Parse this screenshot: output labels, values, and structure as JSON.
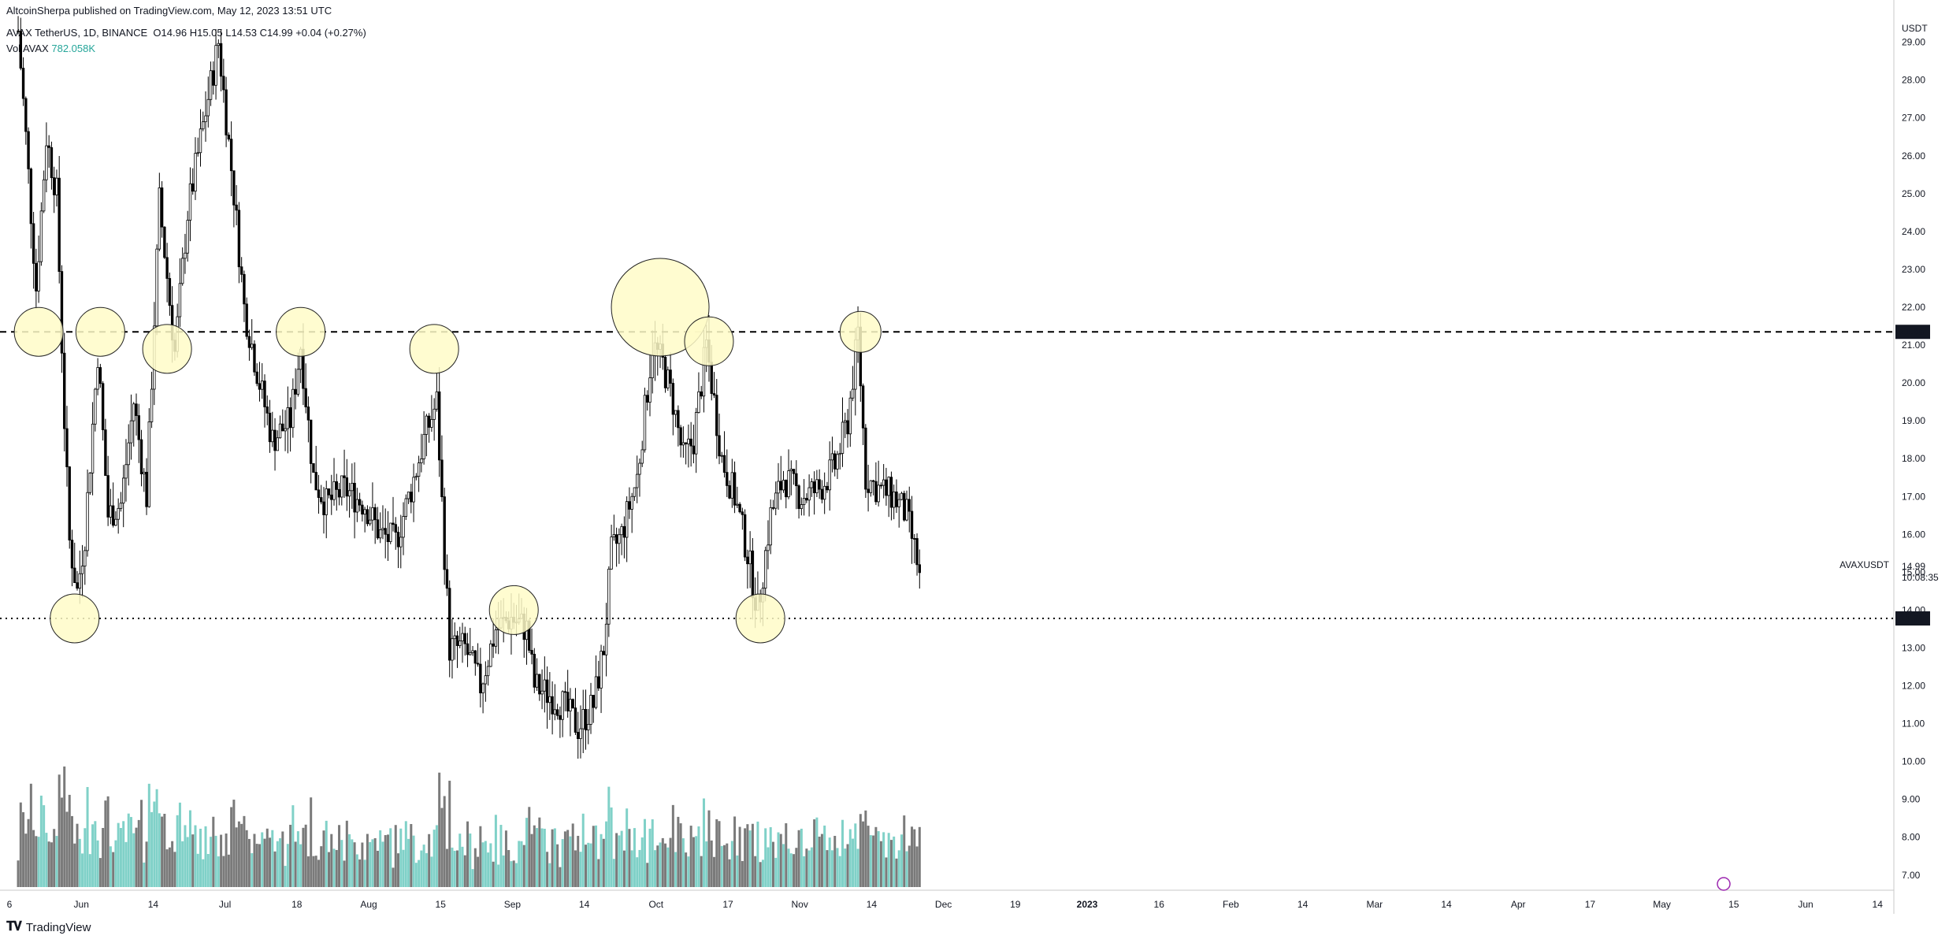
{
  "header": {
    "published": "AltcoinSherpa published on TradingView.com, May 12, 2023 13:51 UTC",
    "symbol_line": "AVAX TetherUS, 1D, BINANCE",
    "open": "O14.96",
    "high": "H15.05",
    "low": "L14.53",
    "close": "C14.99",
    "change": "+0.04 (+0.27%)",
    "volume_label": "Vol AVAX",
    "volume_value": "782.058K"
  },
  "footer": {
    "brand": "TradingView"
  },
  "colors": {
    "up_volume": "#80d1c8",
    "down_volume": "#7a7a7a",
    "circle_fill": "#fffbc8",
    "circle_stroke": "#222222",
    "label_bg": "#131722"
  },
  "chart_data": {
    "type": "candlestick",
    "symbol": "AVAXUSDT",
    "unit": "USDT",
    "current_price": "14.99",
    "countdown": "10:08:35",
    "y_axis_ticks": [
      "7.00",
      "8.00",
      "9.00",
      "10.00",
      "11.00",
      "12.00",
      "13.00",
      "14.00",
      "15.00",
      "16.00",
      "17.00",
      "18.00",
      "19.00",
      "20.00",
      "21.00",
      "22.00",
      "23.00",
      "24.00",
      "25.00",
      "26.00",
      "27.00",
      "28.00",
      "29.00"
    ],
    "ylim": [
      6.6,
      29.7
    ],
    "x_axis_ticks": [
      "6",
      "Jun",
      "14",
      "Jul",
      "18",
      "Aug",
      "15",
      "Sep",
      "14",
      "Oct",
      "17",
      "Nov",
      "14",
      "Dec",
      "19",
      "2023",
      "16",
      "Feb",
      "14",
      "Mar",
      "14",
      "Apr",
      "17",
      "May",
      "15",
      "Jun",
      "14"
    ],
    "horizontal_levels": [
      {
        "price": 21.35,
        "label": "21.35",
        "style": "dashed"
      },
      {
        "price": 13.78,
        "label": "13.78",
        "style": "dotted"
      }
    ],
    "highlighted_touches": [
      {
        "near": "early Jun 2022",
        "price": 21.35
      },
      {
        "near": "mid Jun 2022",
        "price": 13.78
      },
      {
        "near": "late Jun 2022",
        "price": 21.35
      },
      {
        "near": "late Jul 2022",
        "price": 20.9
      },
      {
        "near": "mid Sep 2022",
        "price": 21.35
      },
      {
        "near": "early Nov 2022",
        "price": 20.9
      },
      {
        "near": "early Dec 2022",
        "price": 13.9
      },
      {
        "near": "late Jan 2023",
        "price": 22.0
      },
      {
        "near": "mid Feb 2023",
        "price": 21.1
      },
      {
        "near": "early Mar 2023",
        "price": 13.78
      },
      {
        "near": "mid Apr 2023",
        "price": 21.35
      }
    ],
    "price_path": [
      [
        "May 26 2022",
        29.3
      ],
      [
        "May 29 2022",
        26.5
      ],
      [
        "Jun 2 2022",
        22.5
      ],
      [
        "Jun 6 2022",
        26.5
      ],
      [
        "Jun 10 2022",
        25.0
      ],
      [
        "Jun 13 2022",
        19.0
      ],
      [
        "Jun 15 2022",
        15.8
      ],
      [
        "Jun 18 2022",
        14.5
      ],
      [
        "Jun 21 2022",
        16.0
      ],
      [
        "Jun 26 2022",
        20.8
      ],
      [
        "Jun 30 2022",
        16.5
      ],
      [
        "Jul 5 2022",
        16.8
      ],
      [
        "Jul 10 2022",
        19.5
      ],
      [
        "Jul 15 2022",
        17.0
      ],
      [
        "Jul 20 2022",
        24.8
      ],
      [
        "Jul 26 2022",
        20.8
      ],
      [
        "Jul 31 2022",
        24.5
      ],
      [
        "Aug 6 2022",
        26.8
      ],
      [
        "Aug 12 2022",
        29.0
      ],
      [
        "Aug 18 2022",
        25.0
      ],
      [
        "Aug 22 2022",
        22.0
      ],
      [
        "Aug 28 2022",
        20.0
      ],
      [
        "Sep 2 2022",
        18.5
      ],
      [
        "Sep 9 2022",
        19.0
      ],
      [
        "Sep 13 2022",
        21.0
      ],
      [
        "Sep 18 2022",
        17.5
      ],
      [
        "Sep 23 2022",
        16.8
      ],
      [
        "Sep 30 2022",
        17.2
      ],
      [
        "Oct 8 2022",
        16.8
      ],
      [
        "Oct 14 2022",
        16.0
      ],
      [
        "Oct 20 2022",
        15.8
      ],
      [
        "Oct 26 2022",
        17.2
      ],
      [
        "Oct 31 2022",
        18.5
      ],
      [
        "Nov 5 2022",
        19.5
      ],
      [
        "Nov 8 2022",
        15.5
      ],
      [
        "Nov 10 2022",
        13.0
      ],
      [
        "Nov 16 2022",
        13.0
      ],
      [
        "Nov 22 2022",
        12.0
      ],
      [
        "Nov 28 2022",
        13.5
      ],
      [
        "Dec 4 2022",
        13.8
      ],
      [
        "Dec 10 2022",
        13.5
      ],
      [
        "Dec 13 2022",
        12.0
      ],
      [
        "Dec 18 2022",
        11.8
      ],
      [
        "Dec 24 2022",
        11.5
      ],
      [
        "Dec 30 2022",
        10.9
      ],
      [
        "Jan 5 2023",
        11.5
      ],
      [
        "Jan 9 2023",
        13.0
      ],
      [
        "Jan 12 2023",
        15.5
      ],
      [
        "Jan 16 2023",
        16.0
      ],
      [
        "Jan 22 2023",
        17.5
      ],
      [
        "Jan 28 2023",
        21.0
      ],
      [
        "Feb 1 2023",
        20.5
      ],
      [
        "Feb 5 2023",
        19.5
      ],
      [
        "Feb 9 2023",
        18.0
      ],
      [
        "Feb 13 2023",
        18.5
      ],
      [
        "Feb 18 2023",
        21.0
      ],
      [
        "Feb 24 2023",
        18.0
      ],
      [
        "Mar 1 2023",
        17.0
      ],
      [
        "Mar 6 2023",
        15.5
      ],
      [
        "Mar 10 2023",
        14.0
      ],
      [
        "Mar 15 2023",
        16.5
      ],
      [
        "Mar 20 2023",
        17.5
      ],
      [
        "Mar 27 2023",
        17.0
      ],
      [
        "Apr 3 2023",
        17.2
      ],
      [
        "Apr 9 2023",
        17.8
      ],
      [
        "Apr 14 2023",
        19.0
      ],
      [
        "Apr 18 2023",
        21.3
      ],
      [
        "Apr 21 2023",
        17.5
      ],
      [
        "Apr 26 2023",
        17.2
      ],
      [
        "May 2 2023",
        17.0
      ],
      [
        "May 7 2023",
        16.5
      ],
      [
        "May 12 2023",
        14.99
      ]
    ]
  }
}
